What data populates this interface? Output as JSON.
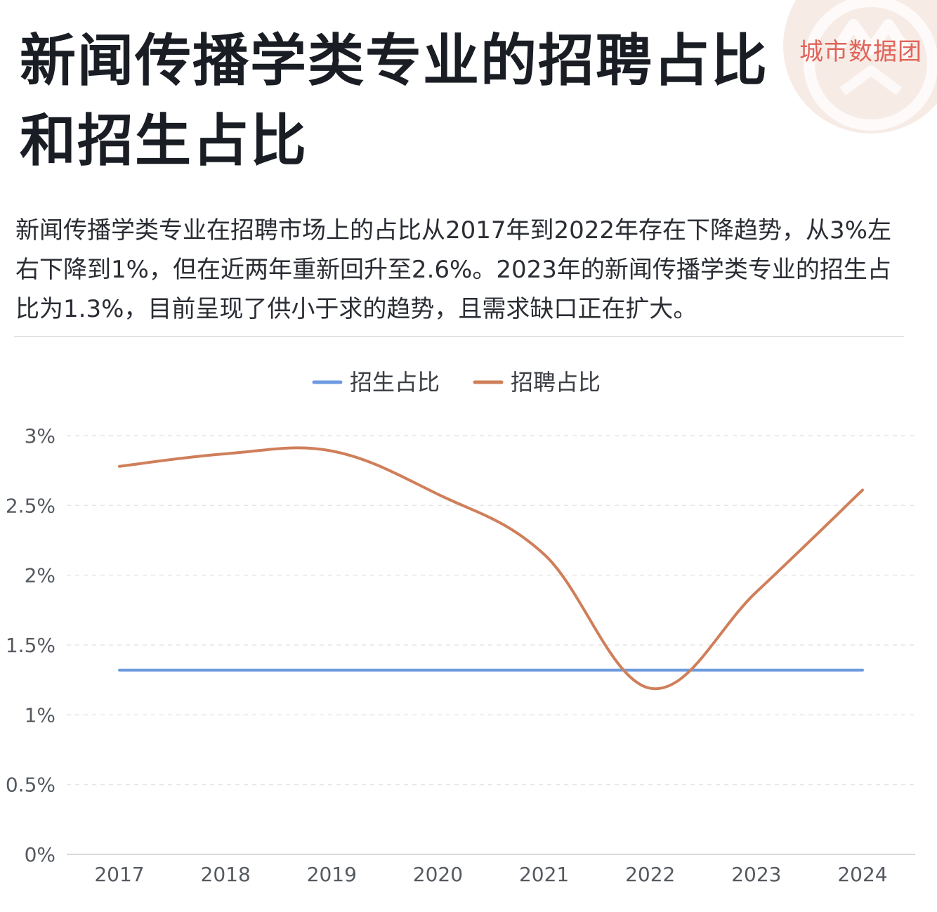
{
  "header": {
    "title": "新闻传播学类专业的招聘占比和招生占比",
    "brand": "城市数据团"
  },
  "description": "新闻传播学类专业在招聘市场上的占比从2017年到2022年存在下降趋势，从3%左右下降到1%，但在近两年重新回升至2.6%。2023年的新闻传播学类专业的招生占比为1.3%，目前呈现了供小于求的趋势，且需求缺口正在扩大。",
  "colors": {
    "enrollment": "#6f9be0",
    "recruitment": "#cf7f5a",
    "logo_circle": "#f7ebe6",
    "brand_text": "#e0645a"
  },
  "chart_data": {
    "type": "line",
    "title": "",
    "xlabel": "",
    "ylabel": "",
    "categories": [
      "2017",
      "2018",
      "2019",
      "2020",
      "2021",
      "2022",
      "2023",
      "2024"
    ],
    "ylim": [
      0,
      3
    ],
    "yticks": [
      0,
      0.5,
      1,
      1.5,
      2,
      2.5,
      3
    ],
    "ytick_labels": [
      "0%",
      "0.5%",
      "1%",
      "1.5%",
      "2%",
      "2.5%",
      "3%"
    ],
    "grid": true,
    "legend_position": "top-center",
    "series": [
      {
        "name": "招生占比",
        "color": "#6f9be0",
        "values": [
          1.32,
          1.32,
          1.32,
          1.32,
          1.32,
          1.32,
          1.32,
          1.32
        ]
      },
      {
        "name": "招聘占比",
        "color": "#cf7f5a",
        "smooth": true,
        "values": [
          2.78,
          2.87,
          2.89,
          2.58,
          2.15,
          1.19,
          1.88,
          2.61
        ]
      }
    ]
  }
}
